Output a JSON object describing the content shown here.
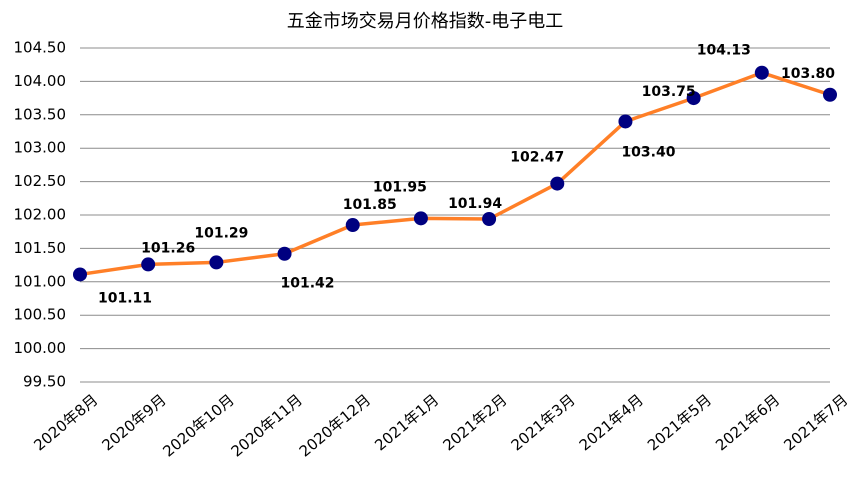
{
  "chart_data": {
    "type": "line",
    "title": "五金市场交易月价格指数-电子电工",
    "categories": [
      "2020年8月",
      "2020年9月",
      "2020年10月",
      "2020年11月",
      "2020年12月",
      "2021年1月",
      "2021年2月",
      "2021年3月",
      "2021年4月",
      "2021年5月",
      "2021年6月",
      "2021年7月"
    ],
    "series": [
      {
        "name": "电子电工",
        "color": "#ff7f27",
        "marker_color": "#000080",
        "values": [
          101.11,
          101.26,
          101.29,
          101.42,
          101.85,
          101.95,
          101.94,
          102.47,
          103.4,
          103.75,
          104.13,
          103.8
        ],
        "value_labels": [
          "101.11",
          "101.26",
          "101.29",
          "101.42",
          "101.85",
          "101.95",
          "101.94",
          "102.47",
          "103.40",
          "103.75",
          "104.13",
          "103.80"
        ]
      }
    ],
    "ylim": [
      99.5,
      104.5
    ],
    "yticks": [
      {
        "value": 99.5,
        "label": "99.50"
      },
      {
        "value": 100,
        "label": "100.00"
      },
      {
        "value": 100.5,
        "label": "100.50"
      },
      {
        "value": 101,
        "label": "101.00"
      },
      {
        "value": 101.5,
        "label": "101.50"
      },
      {
        "value": 102,
        "label": "102.00"
      },
      {
        "value": 102.5,
        "label": "102.50"
      },
      {
        "value": 103,
        "label": "103.00"
      },
      {
        "value": 103.5,
        "label": "103.50"
      },
      {
        "value": 104,
        "label": "104.00"
      },
      {
        "value": 104.5,
        "label": "104.50"
      }
    ],
    "grid": true
  }
}
